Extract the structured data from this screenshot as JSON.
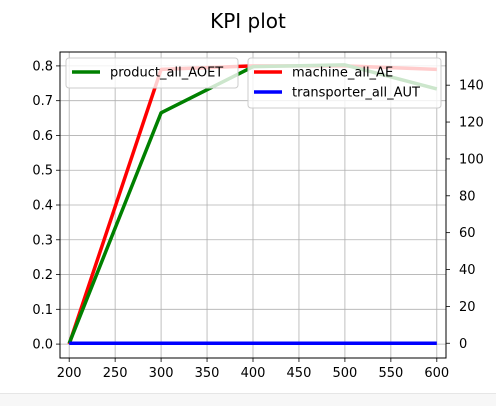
{
  "chart_data": {
    "type": "line",
    "title": "KPI plot",
    "x": [
      200,
      300,
      400,
      500,
      600
    ],
    "x_ticks": [
      200,
      250,
      300,
      350,
      400,
      450,
      500,
      550,
      600
    ],
    "xlim": [
      190,
      610
    ],
    "left_axis": {
      "ylim": [
        -0.04,
        0.84
      ],
      "ticks": [
        "0.0",
        "0.1",
        "0.2",
        "0.3",
        "0.4",
        "0.5",
        "0.6",
        "0.7",
        "0.8"
      ]
    },
    "right_axis": {
      "ylim": [
        -8,
        158
      ],
      "ticks": [
        "0",
        "20",
        "40",
        "60",
        "80",
        "100",
        "120",
        "140"
      ]
    },
    "grid": true,
    "series": [
      {
        "name": "machine_all_AE",
        "axis": "left",
        "color": "#ff0000",
        "values": [
          0.0,
          0.79,
          0.8,
          0.8,
          0.79
        ]
      },
      {
        "name": "product_all_AOET",
        "axis": "right",
        "color": "#008000",
        "values": [
          0,
          125,
          150,
          151,
          138
        ]
      },
      {
        "name": "transporter_all_AUT",
        "axis": "right",
        "color": "#0000ff",
        "values": [
          0,
          0,
          0,
          0,
          0
        ]
      }
    ],
    "legends": [
      {
        "placement": "top-left",
        "entries": [
          "product_all_AOET"
        ]
      },
      {
        "placement": "top-right",
        "entries": [
          "machine_all_AE",
          "transporter_all_AUT"
        ]
      }
    ]
  }
}
